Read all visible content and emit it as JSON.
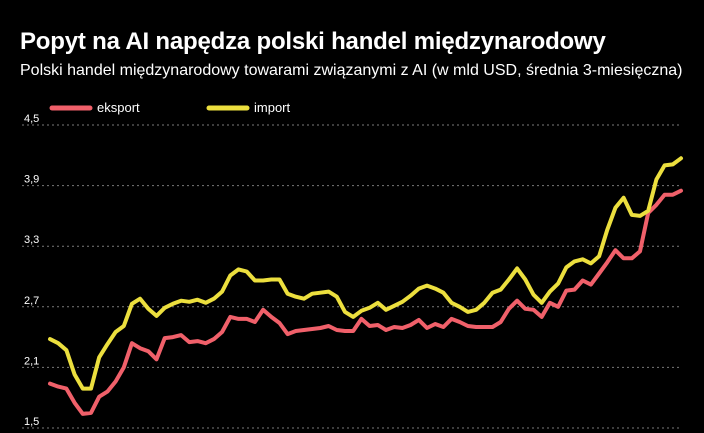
{
  "title": "Popyt na AI napędza polski handel międzynarodowy",
  "subtitle": "Polski handel międzynarodowy towarami związanymi z AI (w mld USD, średnia 3-miesięczna)",
  "chart_data": {
    "type": "line",
    "title": "Popyt na AI napędza polski handel międzynarodowy",
    "subtitle": "Polski handel międzynarodowy towarami związanymi z AI (w mld USD, średnia 3-miesięczna)",
    "ylim": [
      1.5,
      4.5
    ],
    "yticks": [
      "4,5",
      "3,9",
      "3,3",
      "2,7",
      "2,1",
      "1,5"
    ],
    "grid": true,
    "legend": "top-left",
    "series": [
      {
        "name": "eksport",
        "color": "#f0606a",
        "values": [
          1.94,
          1.91,
          1.89,
          1.75,
          1.64,
          1.65,
          1.81,
          1.86,
          1.96,
          2.1,
          2.34,
          2.29,
          2.26,
          2.18,
          2.39,
          2.4,
          2.42,
          2.35,
          2.36,
          2.34,
          2.38,
          2.45,
          2.6,
          2.58,
          2.58,
          2.55,
          2.67,
          2.6,
          2.54,
          2.43,
          2.46,
          2.47,
          2.48,
          2.49,
          2.51,
          2.47,
          2.46,
          2.46,
          2.58,
          2.51,
          2.52,
          2.47,
          2.5,
          2.49,
          2.52,
          2.57,
          2.49,
          2.53,
          2.5,
          2.58,
          2.55,
          2.51,
          2.5,
          2.5,
          2.5,
          2.55,
          2.68,
          2.76,
          2.68,
          2.67,
          2.6,
          2.74,
          2.7,
          2.86,
          2.87,
          2.96,
          2.92,
          3.03,
          3.14,
          3.26,
          3.18,
          3.18,
          3.25,
          3.63,
          3.71,
          3.81,
          3.81,
          3.85
        ]
      },
      {
        "name": "import",
        "color": "#ecdf3e",
        "values": [
          2.38,
          2.34,
          2.27,
          2.03,
          1.89,
          1.89,
          2.2,
          2.33,
          2.45,
          2.51,
          2.73,
          2.78,
          2.68,
          2.61,
          2.69,
          2.73,
          2.76,
          2.75,
          2.77,
          2.74,
          2.78,
          2.85,
          3.01,
          3.07,
          3.05,
          2.96,
          2.96,
          2.97,
          2.97,
          2.83,
          2.8,
          2.78,
          2.83,
          2.84,
          2.85,
          2.8,
          2.65,
          2.6,
          2.66,
          2.69,
          2.74,
          2.67,
          2.71,
          2.75,
          2.81,
          2.88,
          2.91,
          2.88,
          2.84,
          2.74,
          2.7,
          2.65,
          2.67,
          2.74,
          2.84,
          2.87,
          2.97,
          3.08,
          2.97,
          2.82,
          2.74,
          2.85,
          2.93,
          3.09,
          3.15,
          3.17,
          3.13,
          3.2,
          3.46,
          3.68,
          3.78,
          3.61,
          3.6,
          3.65,
          3.96,
          4.1,
          4.11,
          4.17
        ]
      }
    ]
  }
}
